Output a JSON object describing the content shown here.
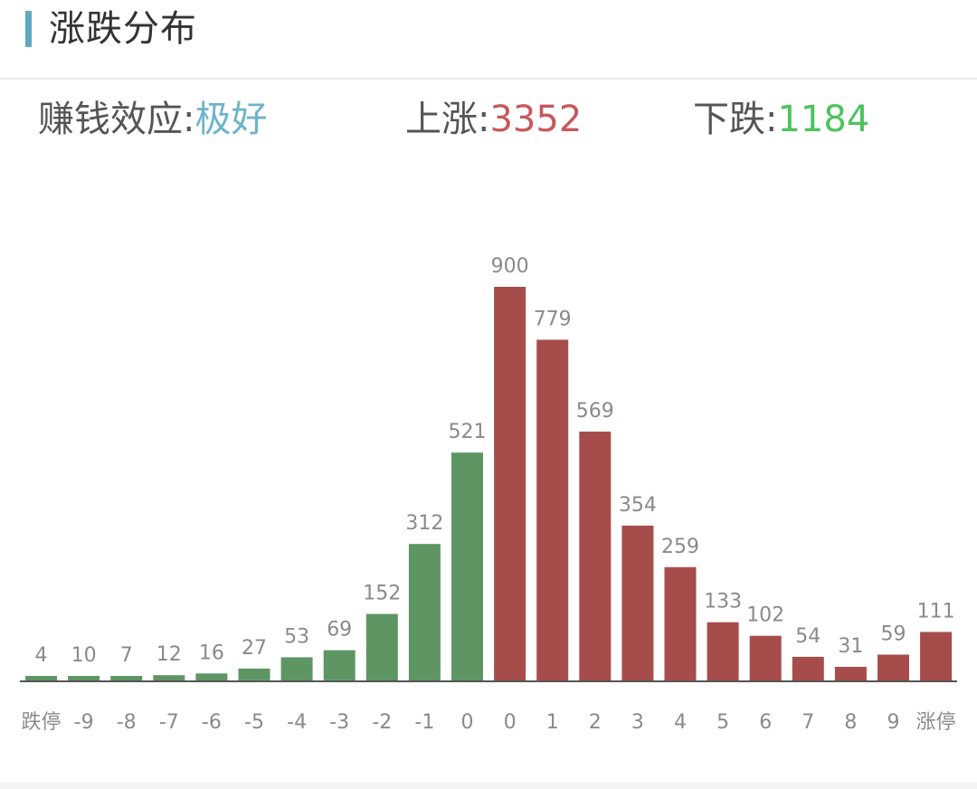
{
  "header": {
    "title": "涨跌分布"
  },
  "stats": {
    "effect_label": "赚钱效应",
    "effect_value": "极好",
    "up_label": "上涨",
    "up_value": "3352",
    "down_label": "下跌",
    "down_value": "1184"
  },
  "colors": {
    "accent": "#5fa8bf",
    "up": "#a64d4b",
    "down": "#5e9663",
    "up_text": "#c9575a",
    "down_text": "#4cc35c",
    "effect_text": "#6db3cc",
    "label_gray": "#8a8a8a"
  },
  "chart_data": {
    "type": "bar",
    "categories": [
      "跌停",
      "-9",
      "-8",
      "-7",
      "-6",
      "-5",
      "-4",
      "-3",
      "-2",
      "-1",
      "0",
      "0",
      "1",
      "2",
      "3",
      "4",
      "5",
      "6",
      "7",
      "8",
      "9",
      "涨停"
    ],
    "values": [
      4,
      10,
      7,
      12,
      16,
      27,
      53,
      69,
      152,
      312,
      521,
      900,
      779,
      569,
      354,
      259,
      133,
      102,
      54,
      31,
      59,
      111
    ],
    "directions": [
      "down",
      "down",
      "down",
      "down",
      "down",
      "down",
      "down",
      "down",
      "down",
      "down",
      "down",
      "up",
      "up",
      "up",
      "up",
      "up",
      "up",
      "up",
      "up",
      "up",
      "up",
      "up"
    ],
    "ylim": [
      0,
      900
    ],
    "grid": false
  }
}
